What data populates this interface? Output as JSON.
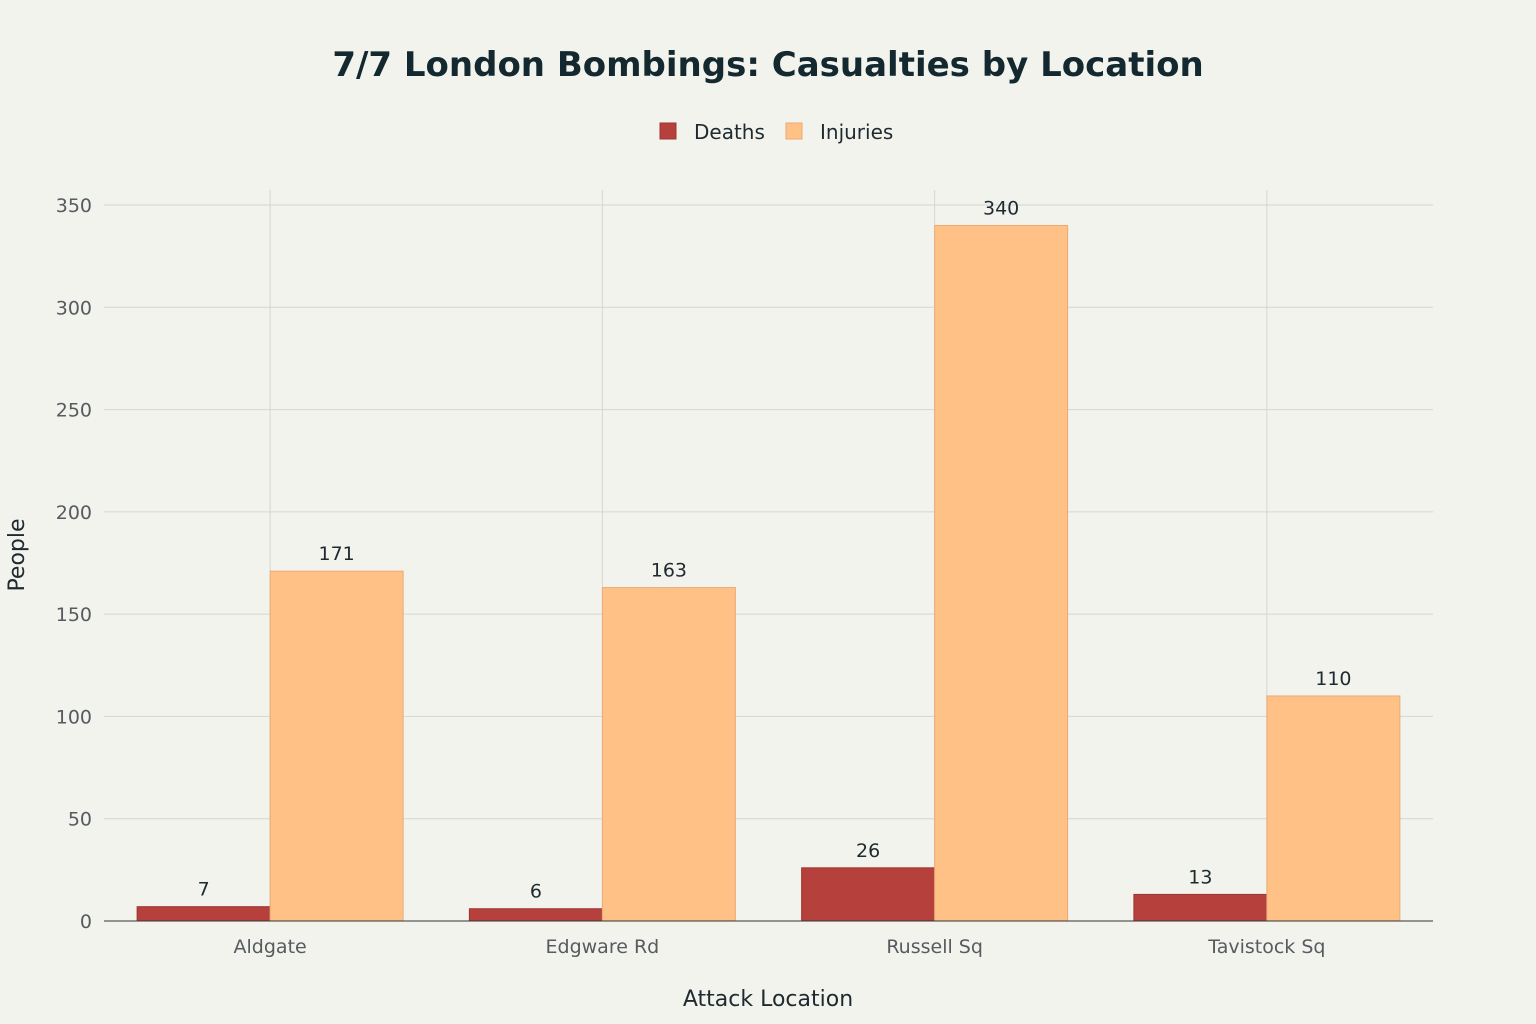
{
  "chart_data": {
    "type": "bar",
    "title": "7/7 London Bombings: Casualties by Location",
    "xlabel": "Attack Location",
    "ylabel": "People",
    "categories": [
      "Aldgate",
      "Edgware Rd",
      "Russell Sq",
      "Tavistock Sq"
    ],
    "series": [
      {
        "name": "Deaths",
        "color": "#b5403c",
        "values": [
          7,
          6,
          26,
          13
        ]
      },
      {
        "name": "Injuries",
        "color": "#ffc185",
        "values": [
          171,
          163,
          340,
          110
        ]
      }
    ],
    "ylim": [
      0,
      350
    ],
    "yticks": [
      0,
      50,
      100,
      150,
      200,
      250,
      300,
      350
    ],
    "grid": true,
    "legend_position": "top-center",
    "data_labels": true
  }
}
